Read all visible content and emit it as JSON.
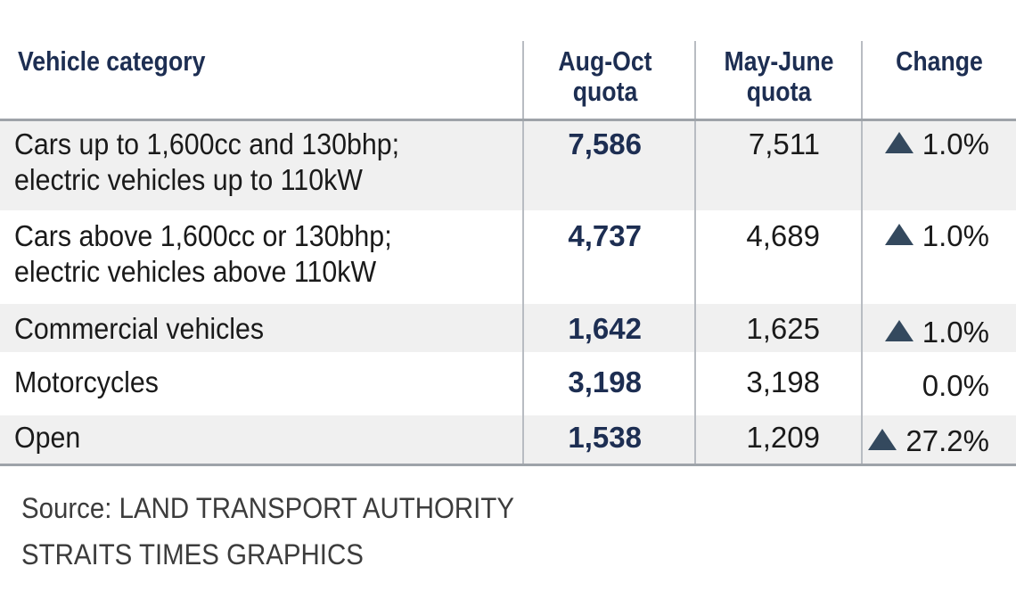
{
  "chart_data": {
    "type": "table",
    "columns": [
      "Vehicle category",
      "Aug-Oct\nquota",
      "May-June\nquota",
      "Change"
    ],
    "rows": [
      {
        "category": "Cars up to 1,600cc and 130bhp;\nelectric vehicles up to 110kW",
        "aug_oct": "7,586",
        "may_june": "7,511",
        "change": "1.0%",
        "up": true,
        "shaded": true
      },
      {
        "category": "Cars above 1,600cc or 130bhp;\nelectric vehicles above 110kW",
        "aug_oct": "4,737",
        "may_june": "4,689",
        "change": "1.0%",
        "up": true,
        "shaded": false
      },
      {
        "category": "Commercial vehicles",
        "aug_oct": "1,642",
        "may_june": "1,625",
        "change": "1.0%",
        "up": true,
        "shaded": true
      },
      {
        "category": "Motorcycles",
        "aug_oct": "3,198",
        "may_june": "3,198",
        "change": "0.0%",
        "up": false,
        "shaded": false
      },
      {
        "category": "Open",
        "aug_oct": "1,538",
        "may_june": "1,209",
        "change": "27.2%",
        "up": true,
        "shaded": true
      }
    ]
  },
  "footer": {
    "source": "Source: LAND TRANSPORT AUTHORITY",
    "credit": "STRAITS TIMES GRAPHICS"
  },
  "colors": {
    "header_text": "#1d2e52",
    "shaded_row": "#f0f0f0",
    "triangle": "#34495e"
  }
}
